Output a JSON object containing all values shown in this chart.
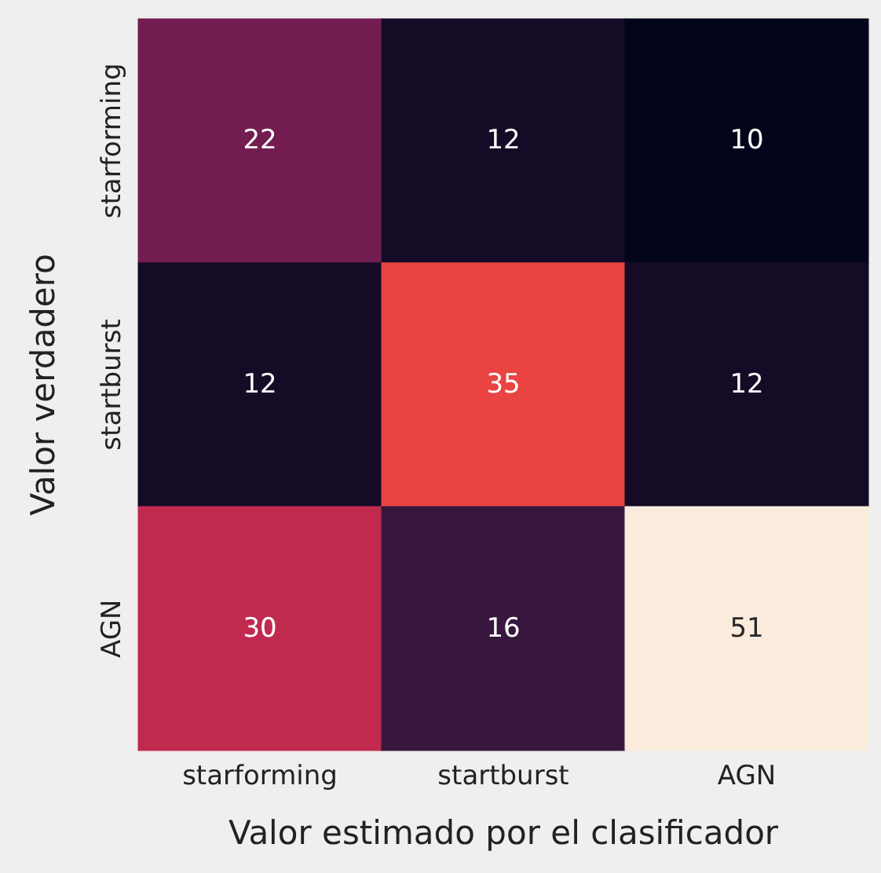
{
  "chart_data": {
    "type": "heatmap",
    "data_labels": true,
    "xlabel": "Valor estimado por el clasificador",
    "ylabel": "Valor verdadero",
    "categories": [
      "starforming",
      "startburst",
      "AGN"
    ],
    "y_categories": [
      "starforming",
      "startburst",
      "AGN"
    ],
    "cells": [
      [
        22,
        12,
        10
      ],
      [
        12,
        35,
        12
      ],
      [
        30,
        16,
        51
      ]
    ]
  }
}
